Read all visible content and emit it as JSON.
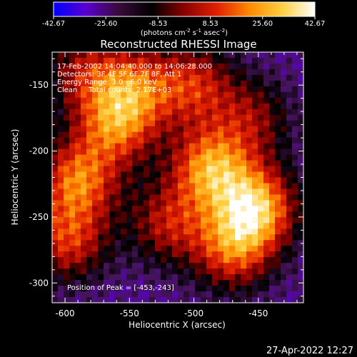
{
  "chart_data": {
    "type": "heatmap",
    "title": "Reconstructed RHESSI Image",
    "xlabel": "Heliocentric X (arcsec)",
    "ylabel": "Heliocentric Y (arcsec)",
    "xlim": [
      -610,
      -415
    ],
    "ylim": [
      -315,
      -125
    ],
    "x_ticks": [
      "-600",
      "-550",
      "-500",
      "-450"
    ],
    "y_ticks": [
      "-150",
      "-200",
      "-250",
      "-300"
    ],
    "colorbar": {
      "ticks": [
        "-42.67",
        "-25.60",
        "-8.53",
        "8.53",
        "25.60",
        "42.67"
      ],
      "unit_label": "(photons cm",
      "unit_sup1": "-2",
      "unit_mid1": " s",
      "unit_sup2": "-1",
      "unit_mid2": " asec",
      "unit_sup3": "-2",
      "unit_end": ")",
      "colors": [
        "#0000ff",
        "#5a00d0",
        "#3a0a3a",
        "#000000",
        "#8a0000",
        "#e02000",
        "#ff8a00",
        "#ffd040",
        "#ffffff"
      ]
    },
    "annotations": [
      "17-Feb-2002 14:04:40.000 to 14:06:28.000",
      "Detectors: 3F 4F 5F 6F 7F 8F, Att 1",
      "Energy Range: 3.0 - 6.0 keV",
      "Clean     Total counts: 2.17E+03"
    ],
    "peak_label": "Position of Peak = [-453,-243]",
    "peaks": [
      {
        "x": -452,
        "y": -243,
        "v": 1.0
      },
      {
        "x": -487,
        "y": -213,
        "v": 0.9
      },
      {
        "x": -590,
        "y": -222,
        "v": 0.8
      },
      {
        "x": -560,
        "y": -180,
        "v": 0.75
      },
      {
        "x": -545,
        "y": -150,
        "v": 0.6
      },
      {
        "x": -598,
        "y": -268,
        "v": 0.65
      },
      {
        "x": -500,
        "y": -150,
        "v": 0.6
      },
      {
        "x": -470,
        "y": -275,
        "v": 0.7
      },
      {
        "x": -520,
        "y": -255,
        "v": 0.55
      },
      {
        "x": -455,
        "y": -175,
        "v": 0.45
      },
      {
        "x": -585,
        "y": -140,
        "v": 0.5
      }
    ]
  },
  "footer": {
    "date": "27-Apr-2022 12:27"
  }
}
